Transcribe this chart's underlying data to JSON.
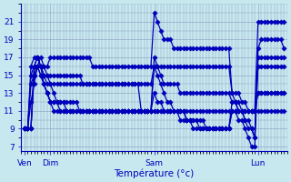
{
  "background_color": "#c8e8f0",
  "grid_color": "#8899bb",
  "line_color": "#0000bb",
  "marker": "D",
  "markersize": 2.5,
  "linewidth": 0.9,
  "ylabel_ticks": [
    7,
    9,
    11,
    13,
    15,
    17,
    19,
    21
  ],
  "xlabel": "Température (°c)",
  "xtick_positions": [
    0,
    8,
    40,
    72
  ],
  "xtick_labels": [
    "Ven",
    "Dim",
    "Sam",
    "Lun"
  ],
  "xlim": [
    -1,
    81
  ],
  "ylim": [
    6.5,
    23.0
  ],
  "series": [
    [
      9,
      9,
      16,
      17,
      17,
      16,
      16,
      16,
      17,
      17,
      17,
      17,
      17,
      17,
      17,
      17,
      17,
      17,
      17,
      17,
      17,
      16,
      16,
      16,
      16,
      16,
      16,
      16,
      16,
      16,
      16,
      16,
      16,
      16,
      16,
      16,
      16,
      16,
      16,
      16,
      22,
      21,
      20,
      19,
      19,
      19,
      18,
      18,
      18,
      18,
      18,
      18,
      18,
      18,
      18,
      18,
      18,
      18,
      18,
      18,
      18,
      18,
      18,
      18,
      13,
      13,
      13,
      12,
      12,
      11,
      11,
      11,
      21,
      21,
      21,
      21,
      21,
      21,
      21,
      21,
      21
    ],
    [
      9,
      9,
      15,
      16,
      17,
      16,
      15,
      14,
      14,
      14,
      14,
      14,
      14,
      14,
      14,
      14,
      14,
      14,
      14,
      14,
      14,
      14,
      14,
      14,
      14,
      14,
      14,
      14,
      14,
      14,
      14,
      14,
      14,
      14,
      14,
      14,
      14,
      14,
      14,
      14,
      16,
      16,
      16,
      16,
      16,
      16,
      16,
      16,
      16,
      16,
      16,
      16,
      16,
      16,
      16,
      16,
      16,
      16,
      16,
      16,
      16,
      16,
      16,
      16,
      13,
      12,
      12,
      11,
      10,
      10,
      9,
      8,
      18,
      19,
      19,
      19,
      19,
      19,
      19,
      19,
      18
    ],
    [
      9,
      9,
      14,
      15,
      16,
      16,
      15,
      15,
      15,
      15,
      15,
      15,
      15,
      15,
      15,
      15,
      15,
      15,
      14,
      14,
      14,
      14,
      14,
      14,
      14,
      14,
      14,
      14,
      14,
      14,
      14,
      14,
      14,
      14,
      14,
      14,
      11,
      11,
      11,
      11,
      17,
      16,
      15,
      14,
      14,
      14,
      14,
      14,
      13,
      13,
      13,
      13,
      13,
      13,
      13,
      13,
      13,
      13,
      13,
      13,
      13,
      13,
      13,
      13,
      12,
      12,
      11,
      11,
      10,
      9,
      9,
      8,
      17,
      17,
      17,
      17,
      17,
      17,
      17,
      17,
      17
    ],
    [
      9,
      9,
      9,
      16,
      17,
      16,
      14,
      13,
      12,
      12,
      12,
      12,
      12,
      12,
      12,
      12,
      12,
      11,
      11,
      11,
      11,
      11,
      11,
      11,
      11,
      11,
      11,
      11,
      11,
      11,
      11,
      11,
      11,
      11,
      11,
      11,
      11,
      11,
      11,
      11,
      11,
      11,
      11,
      11,
      11,
      11,
      11,
      11,
      11,
      11,
      10,
      10,
      10,
      10,
      10,
      10,
      9,
      9,
      9,
      9,
      9,
      9,
      9,
      9,
      12,
      12,
      11,
      11,
      11,
      11,
      11,
      11,
      13,
      13,
      13,
      13,
      13,
      13,
      13,
      13,
      13
    ],
    [
      9,
      9,
      12,
      14,
      16,
      17,
      16,
      15,
      14,
      13,
      12,
      12,
      12,
      11,
      11,
      11,
      11,
      11,
      11,
      11,
      11,
      11,
      11,
      11,
      11,
      11,
      11,
      11,
      11,
      11,
      11,
      11,
      11,
      11,
      11,
      11,
      11,
      11,
      11,
      11,
      16,
      15,
      14,
      13,
      12,
      12,
      11,
      11,
      10,
      10,
      10,
      10,
      9,
      9,
      9,
      9,
      9,
      9,
      9,
      9,
      9,
      9,
      9,
      9,
      11,
      11,
      10,
      10,
      9,
      8,
      7,
      7,
      16,
      16,
      16,
      16,
      16,
      16,
      16,
      16,
      16
    ],
    [
      9,
      9,
      9,
      16,
      16,
      15,
      14,
      13,
      12,
      12,
      12,
      11,
      11,
      11,
      11,
      11,
      11,
      11,
      11,
      11,
      11,
      11,
      11,
      11,
      11,
      11,
      11,
      11,
      11,
      11,
      11,
      11,
      11,
      11,
      11,
      11,
      11,
      11,
      11,
      11,
      13,
      12,
      12,
      11,
      11,
      11,
      11,
      11,
      11,
      11,
      10,
      10,
      10,
      10,
      9,
      9,
      9,
      9,
      9,
      9,
      9,
      9,
      9,
      9,
      11,
      11,
      11,
      11,
      11,
      11,
      11,
      11,
      13,
      13,
      13,
      13,
      13,
      13,
      13,
      13,
      13
    ],
    [
      9,
      9,
      9,
      15,
      16,
      15,
      14,
      13,
      12,
      11,
      11,
      11,
      11,
      11,
      11,
      11,
      11,
      11,
      11,
      11,
      11,
      11,
      11,
      11,
      11,
      11,
      11,
      11,
      11,
      11,
      11,
      11,
      11,
      11,
      11,
      11,
      11,
      11,
      11,
      11,
      11,
      11,
      11,
      11,
      11,
      11,
      11,
      11,
      11,
      11,
      11,
      11,
      11,
      11,
      11,
      11,
      11,
      11,
      11,
      11,
      11,
      11,
      11,
      11,
      11,
      11,
      11,
      11,
      11,
      11,
      11,
      11,
      11,
      11,
      11,
      11,
      11,
      11,
      11,
      11,
      11
    ]
  ]
}
